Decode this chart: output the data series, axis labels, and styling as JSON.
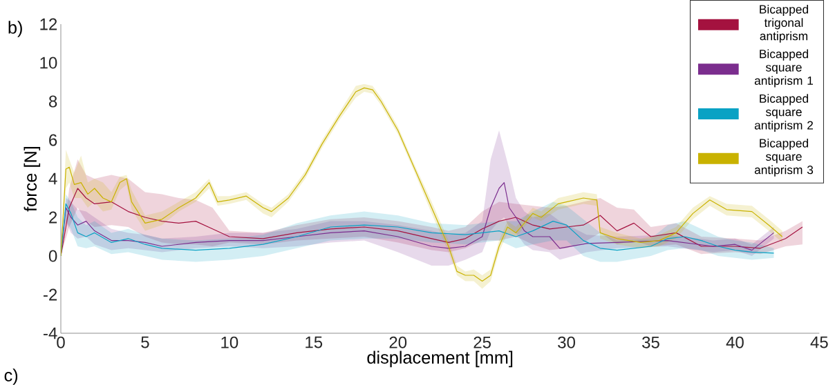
{
  "chart_data": {
    "type": "line",
    "xlabel": "displacement [mm]",
    "ylabel": "force [N]",
    "xlim": [
      0,
      45
    ],
    "xticks": [
      0,
      5,
      10,
      15,
      20,
      25,
      30,
      35,
      40,
      45
    ],
    "ylim": [
      -4,
      12
    ],
    "yticks": [
      -4,
      -2,
      0,
      2,
      4,
      6,
      8,
      10,
      12
    ],
    "legend": "top right",
    "grid": false,
    "annotations": [
      "b)",
      "c)"
    ],
    "series": [
      {
        "name": "Bicapped trigonal antiprism",
        "color": "#a4123f",
        "x": [
          0,
          0.5,
          1.0,
          1.5,
          2.0,
          3.0,
          4.0,
          5.0,
          6.0,
          7.0,
          8.0,
          9.0,
          10.0,
          12.0,
          14.0,
          16.0,
          18.0,
          20.0,
          22.0,
          23.0,
          24.0,
          25.0,
          26.0,
          27.0,
          28.0,
          29.0,
          30.0,
          31.0,
          32.0,
          33.0,
          34.0,
          35.0,
          36.5,
          38.0,
          40.0,
          41.5,
          43.0,
          44.0
        ],
        "values": [
          0,
          2.5,
          3.5,
          3.0,
          2.7,
          2.8,
          2.3,
          2.0,
          1.8,
          1.7,
          1.8,
          1.4,
          1.0,
          0.9,
          1.2,
          1.4,
          1.5,
          1.3,
          0.9,
          0.7,
          0.9,
          1.4,
          1.8,
          2.0,
          1.6,
          1.4,
          1.5,
          1.6,
          2.1,
          1.3,
          1.7,
          1.0,
          1.2,
          0.5,
          0.5,
          0.4,
          0.9,
          1.5
        ],
        "lower": [
          0,
          1.5,
          2.5,
          1.8,
          1.5,
          1.6,
          1.5,
          1.0,
          0.7,
          0.6,
          0.6,
          0.5,
          0.7,
          0.6,
          0.8,
          0.9,
          1.0,
          0.7,
          0.3,
          0.2,
          0.4,
          0.8,
          0.8,
          1.0,
          0.6,
          0.3,
          0.4,
          0.7,
          1.2,
          0.6,
          0.8,
          0.5,
          0.6,
          0.1,
          0.2,
          0.1,
          0.5,
          0.6
        ],
        "upper": [
          0,
          3.5,
          5.0,
          4.2,
          4.0,
          4.2,
          4.0,
          3.3,
          3.2,
          3.0,
          2.9,
          2.5,
          1.3,
          1.2,
          1.6,
          1.9,
          2.0,
          1.8,
          1.5,
          1.3,
          1.5,
          2.3,
          2.8,
          2.7,
          2.6,
          2.5,
          2.6,
          2.8,
          3.0,
          2.5,
          2.4,
          1.5,
          1.7,
          1.0,
          0.9,
          0.8,
          1.3,
          1.8
        ]
      },
      {
        "name": "Bicapped square antiprism 1",
        "color": "#7b2d8e",
        "x": [
          0,
          0.3,
          0.6,
          1.0,
          1.5,
          2.0,
          3.0,
          4.0,
          5.0,
          6.0,
          8.0,
          10.0,
          12.0,
          14.0,
          16.0,
          18.0,
          20.0,
          22.0,
          23.0,
          24.0,
          25.0,
          25.5,
          26.0,
          26.3,
          26.6,
          27.0,
          27.5,
          28.0,
          29.0,
          29.6,
          31.2,
          33.0,
          36.0,
          38.7,
          40.0,
          41.0,
          42.3
        ],
        "values": [
          0,
          2.5,
          2.0,
          1.6,
          1.8,
          1.3,
          0.8,
          0.8,
          0.7,
          0.5,
          0.7,
          0.8,
          0.8,
          1.0,
          1.2,
          1.3,
          1.0,
          0.5,
          0.4,
          0.5,
          1.0,
          2.5,
          3.5,
          3.8,
          2.5,
          2.0,
          1.3,
          1.0,
          1.0,
          0.4,
          0.65,
          0.7,
          0.8,
          0.5,
          0.6,
          0.3,
          1.2
        ],
        "lower": [
          0,
          1.8,
          1.2,
          0.9,
          1.0,
          0.6,
          0.3,
          0.4,
          0.3,
          0.2,
          0.4,
          0.5,
          0.4,
          0.5,
          0.7,
          0.8,
          0.2,
          -0.5,
          -0.5,
          -0.2,
          0.2,
          1.3,
          1.8,
          2.0,
          1.5,
          1.2,
          0.6,
          0.3,
          0.2,
          -0.2,
          0.2,
          0.4,
          0.5,
          0.2,
          0.3,
          0.0,
          0.9
        ],
        "upper": [
          0,
          3.0,
          2.8,
          2.4,
          2.3,
          2.0,
          1.4,
          1.2,
          1.1,
          0.9,
          1.0,
          1.2,
          1.2,
          1.4,
          1.8,
          1.8,
          1.6,
          1.3,
          1.1,
          1.2,
          1.8,
          5.0,
          6.5,
          5.5,
          4.5,
          3.0,
          2.3,
          2.0,
          2.2,
          1.8,
          1.1,
          1.0,
          1.1,
          0.8,
          0.9,
          0.6,
          1.5
        ]
      },
      {
        "name": "Bicapped square antiprism 2",
        "color": "#0aa2c4",
        "x": [
          0,
          0.3,
          0.6,
          1.0,
          1.5,
          2.0,
          3.0,
          4.0,
          5.0,
          6.0,
          8.0,
          10.0,
          12.0,
          14.0,
          16.0,
          18.0,
          20.0,
          22.0,
          24.0,
          26.0,
          27.0,
          28.0,
          29.2,
          30.0,
          31.0,
          32.0,
          33.0,
          35.0,
          36.0,
          37.0,
          38.0,
          39.0,
          40.0,
          41.0,
          42.3
        ],
        "values": [
          0,
          2.7,
          2.2,
          1.2,
          1.0,
          1.2,
          0.7,
          0.9,
          0.6,
          0.4,
          0.3,
          0.4,
          0.6,
          1.0,
          1.5,
          1.6,
          1.5,
          1.2,
          1.1,
          1.3,
          1.0,
          1.3,
          1.8,
          1.6,
          0.8,
          0.4,
          0.3,
          0.5,
          0.9,
          1.0,
          0.8,
          0.5,
          0.3,
          0.2,
          0.15
        ],
        "lower": [
          0,
          1.8,
          1.4,
          0.5,
          0.4,
          0.5,
          0.1,
          0.2,
          0.0,
          -0.2,
          -0.3,
          -0.2,
          0.0,
          0.4,
          0.8,
          0.9,
          0.9,
          0.7,
          0.6,
          0.8,
          0.4,
          0.6,
          0.8,
          0.8,
          0.0,
          -0.3,
          -0.3,
          0.0,
          0.3,
          0.4,
          0.3,
          0.0,
          -0.1,
          -0.2,
          -0.1
        ],
        "upper": [
          0,
          3.2,
          2.8,
          2.0,
          1.6,
          1.8,
          1.2,
          1.4,
          1.1,
          0.9,
          0.8,
          0.9,
          1.1,
          1.7,
          2.1,
          2.3,
          2.1,
          1.7,
          1.6,
          1.8,
          1.8,
          2.3,
          2.8,
          2.6,
          1.9,
          1.2,
          0.8,
          0.9,
          1.6,
          1.8,
          1.4,
          1.0,
          0.8,
          0.7,
          0.4
        ]
      },
      {
        "name": "Bicapped square antiprism 3",
        "color": "#c9b200",
        "x": [
          0,
          0.3,
          0.5,
          0.8,
          1.2,
          1.6,
          2.0,
          2.5,
          3.0,
          3.5,
          3.9,
          4.2,
          5.0,
          6.0,
          7.0,
          8.0,
          8.8,
          9.3,
          10.0,
          11.0,
          12.0,
          12.5,
          13.5,
          14.5,
          15.5,
          16.5,
          17.5,
          18.0,
          18.5,
          19.0,
          20.0,
          21.0,
          22.0,
          23.0,
          23.5,
          24.0,
          24.5,
          25.0,
          25.5,
          26.0,
          26.5,
          27.0,
          28.0,
          28.5,
          29.5,
          30.0,
          31.0,
          31.8,
          32.0,
          33.0,
          34.4,
          35.5,
          36.5,
          37.5,
          38.5,
          39.5,
          41.0,
          42.0,
          42.8
        ],
        "values": [
          0,
          4.5,
          4.6,
          3.7,
          3.8,
          3.2,
          3.5,
          3.0,
          2.8,
          3.8,
          4.0,
          2.8,
          1.7,
          1.9,
          2.5,
          3.0,
          3.8,
          2.8,
          2.9,
          3.1,
          2.5,
          2.3,
          3.0,
          4.2,
          5.8,
          7.2,
          8.5,
          8.7,
          8.6,
          8.0,
          6.5,
          4.5,
          2.5,
          0.5,
          -0.8,
          -1.0,
          -1.0,
          -1.3,
          -1.0,
          0.5,
          1.5,
          1.2,
          2.2,
          2.0,
          2.7,
          2.8,
          3.0,
          2.9,
          1.2,
          0.9,
          0.7,
          0.8,
          1.2,
          2.2,
          2.9,
          2.4,
          2.3,
          1.6,
          1.0
        ],
        "lower": [
          0,
          3.5,
          3.8,
          3.0,
          3.0,
          2.5,
          2.8,
          2.3,
          2.4,
          3.4,
          3.7,
          2.4,
          1.3,
          1.6,
          2.3,
          2.8,
          3.5,
          2.6,
          2.7,
          2.9,
          2.2,
          2.0,
          2.8,
          4.0,
          5.6,
          7.0,
          8.2,
          8.5,
          8.4,
          7.8,
          6.3,
          4.3,
          2.2,
          0.2,
          -1.0,
          -1.3,
          -1.3,
          -1.7,
          -1.3,
          0.2,
          1.2,
          1.0,
          2.0,
          1.8,
          2.4,
          2.5,
          2.7,
          2.6,
          0.9,
          0.6,
          0.4,
          0.5,
          0.9,
          1.9,
          2.6,
          2.1,
          2.0,
          1.3,
          0.7
        ],
        "upper": [
          0,
          5.5,
          5.0,
          4.3,
          5.2,
          3.8,
          4.0,
          3.8,
          3.3,
          4.1,
          4.2,
          3.4,
          2.1,
          2.3,
          2.8,
          3.3,
          4.0,
          3.1,
          3.1,
          3.3,
          2.7,
          2.5,
          3.2,
          4.4,
          6.0,
          7.4,
          8.8,
          8.9,
          8.8,
          8.2,
          6.7,
          4.7,
          2.8,
          0.8,
          -0.5,
          -0.8,
          -0.7,
          -1.0,
          -0.7,
          0.8,
          1.8,
          1.5,
          2.5,
          2.3,
          3.0,
          3.1,
          3.3,
          3.2,
          1.5,
          1.2,
          0.9,
          1.1,
          1.5,
          2.5,
          3.1,
          2.7,
          2.6,
          1.9,
          1.3
        ]
      }
    ]
  }
}
